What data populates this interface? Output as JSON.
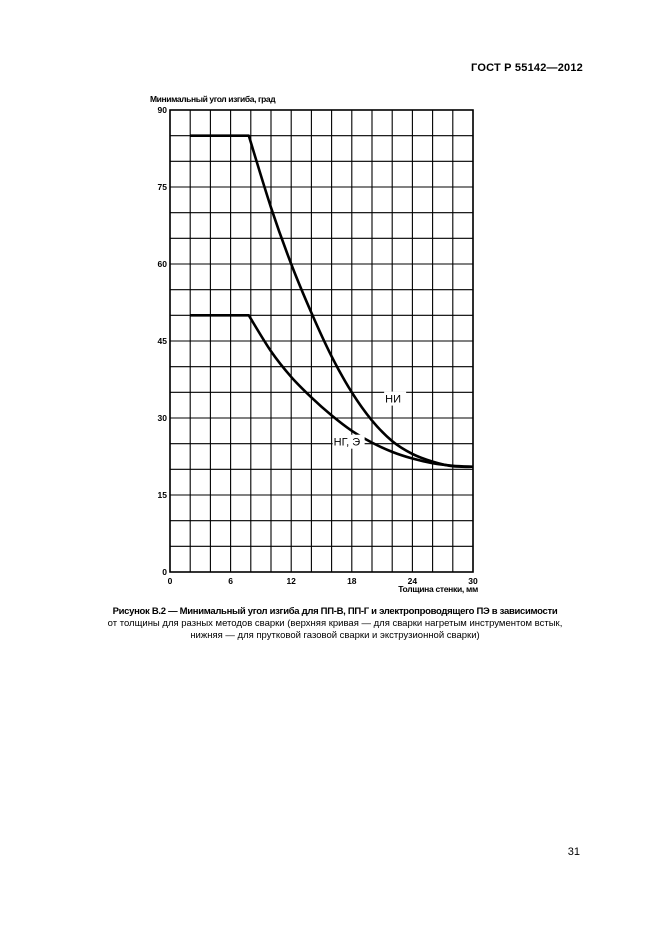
{
  "header": {
    "standard": "ГОСТ Р 55142—2012"
  },
  "chart_data": {
    "type": "line",
    "ylabel": "Минимальный угол изгиба, град",
    "xlabel": "Толщина стенки, мм",
    "xlim": [
      0,
      30
    ],
    "ylim": [
      0,
      90
    ],
    "x_ticks": [
      0,
      6,
      12,
      18,
      24,
      30
    ],
    "y_ticks": [
      0,
      15,
      30,
      45,
      60,
      75,
      90
    ],
    "grid": true,
    "series": [
      {
        "name": "НИ",
        "points": [
          [
            2,
            85
          ],
          [
            7.8,
            85
          ],
          [
            10,
            71
          ],
          [
            12,
            60
          ],
          [
            14,
            50.5
          ],
          [
            16,
            42
          ],
          [
            18,
            35
          ],
          [
            20,
            29.5
          ],
          [
            22,
            25.5
          ],
          [
            24,
            23
          ],
          [
            26,
            21.5
          ],
          [
            28,
            20.6
          ],
          [
            30,
            20.5
          ]
        ]
      },
      {
        "name": "НГ, Э",
        "points": [
          [
            2,
            50
          ],
          [
            7.8,
            50
          ],
          [
            10,
            43
          ],
          [
            12,
            38
          ],
          [
            14,
            34
          ],
          [
            16,
            30.5
          ],
          [
            18,
            27.5
          ],
          [
            20,
            25.2
          ],
          [
            22,
            23.4
          ],
          [
            24,
            22.1
          ],
          [
            26,
            21.2
          ],
          [
            28,
            20.7
          ],
          [
            30,
            20.5
          ]
        ]
      }
    ]
  },
  "caption": {
    "title": "Рисунок В.2 — Минимальный угол изгиба для ПП-В, ПП-Г и электропроводящего ПЭ в зависимости",
    "line2": "от толщины для разных методов сварки (верхняя кривая — для сварки нагретым инструментом встык,",
    "line3": "нижняя — для прутковой газовой сварки и экструзионной сварки)"
  },
  "page": {
    "number": "31"
  }
}
